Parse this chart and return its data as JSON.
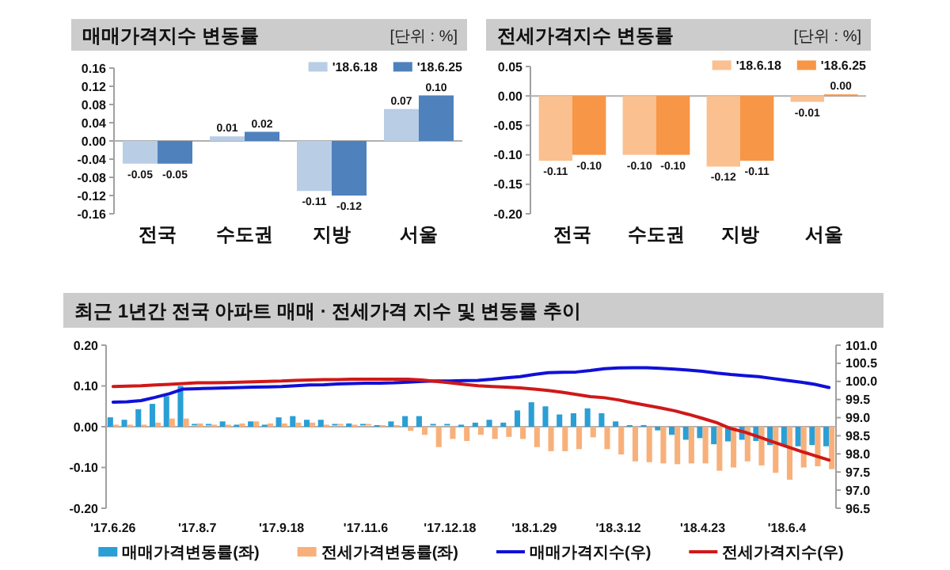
{
  "chart_data": [
    {
      "type": "bar",
      "title": "매매가격지수 변동률",
      "annotations": [
        "[단위 : %]"
      ],
      "categories": [
        "전국",
        "수도권",
        "지방",
        "서울"
      ],
      "series": [
        {
          "name": "'18.6.18",
          "color": "#b9cde5",
          "values": [
            -0.05,
            0.01,
            -0.11,
            0.07
          ],
          "value_labels": [
            "-0.05",
            "0.01",
            "-0.11",
            "0.07"
          ]
        },
        {
          "name": "'18.6.25",
          "color": "#4f81bd",
          "values": [
            -0.05,
            0.02,
            -0.12,
            0.1
          ],
          "value_labels": [
            "-0.05",
            "0.02",
            "-0.12",
            "0.10"
          ]
        }
      ],
      "ylim": [
        -0.16,
        0.16
      ],
      "yticks": [
        {
          "value": -0.16,
          "label": "-0.16"
        },
        {
          "value": -0.12,
          "label": "-0.12"
        },
        {
          "value": -0.08,
          "label": "-0.08"
        },
        {
          "value": -0.04,
          "label": "-0.04"
        },
        {
          "value": 0,
          "label": "0.00"
        },
        {
          "value": 0.04,
          "label": "0.04"
        },
        {
          "value": 0.08,
          "label": "0.08"
        },
        {
          "value": 0.12,
          "label": "0.12"
        },
        {
          "value": 0.16,
          "label": "0.16"
        }
      ],
      "legend": "top right"
    },
    {
      "type": "bar",
      "title": "전세가격지수 변동률",
      "annotations": [
        "[단위 : %]"
      ],
      "categories": [
        "전국",
        "수도권",
        "지방",
        "서울"
      ],
      "series": [
        {
          "name": "'18.6.18",
          "color": "#fac08f",
          "values": [
            -0.11,
            -0.1,
            -0.12,
            -0.01
          ],
          "value_labels": [
            "-0.11",
            "-0.10",
            "-0.12",
            "-0.01"
          ]
        },
        {
          "name": "'18.6.25",
          "color": "#f79646",
          "values": [
            -0.1,
            -0.1,
            -0.11,
            0.0
          ],
          "value_labels": [
            "-0.10",
            "-0.10",
            "-0.11",
            "0.00"
          ]
        }
      ],
      "ylim": [
        -0.2,
        0.05
      ],
      "yticks": [
        {
          "value": -0.2,
          "label": "-0.20"
        },
        {
          "value": -0.15,
          "label": "-0.15"
        },
        {
          "value": -0.1,
          "label": "-0.10"
        },
        {
          "value": -0.05,
          "label": "-0.05"
        },
        {
          "value": 0,
          "label": "0.00"
        },
        {
          "value": 0.05,
          "label": "0.05"
        }
      ],
      "legend": "top right"
    },
    {
      "type": "bar",
      "title": "최근 1년간 전국 아파트 매매 · 전세가격 지수 및 변동률 추이",
      "categories": [
        "'17.6.26",
        null,
        null,
        null,
        null,
        null,
        "'17.8.7",
        null,
        null,
        null,
        null,
        null,
        "'17.9.18",
        null,
        null,
        null,
        null,
        null,
        "'17.11.6",
        null,
        null,
        null,
        null,
        null,
        "'17.12.18",
        null,
        null,
        null,
        null,
        null,
        "'18.1.29",
        null,
        null,
        null,
        null,
        null,
        "'18.3.12",
        null,
        null,
        null,
        null,
        null,
        "'18.4.23",
        null,
        null,
        null,
        null,
        null,
        "'18.6.4",
        null,
        null,
        null
      ],
      "series": [
        {
          "name": "매매가격변동률(좌)",
          "color": "#2a9fd6",
          "values": [
            0.023,
            0.017,
            0.043,
            0.056,
            0.075,
            0.1,
            0.003,
            0.003,
            0.013,
            0.005,
            0.013,
            0.005,
            0.023,
            0.026,
            0.017,
            0.017,
            0.003,
            0.008,
            0.003,
            0,
            0.013,
            0.026,
            0.026,
            0.003,
            0.003,
            0.005,
            0.01,
            0.017,
            0.01,
            0.04,
            0.06,
            0.05,
            0.03,
            0.033,
            0.045,
            0.033,
            0.013,
            0,
            0.004,
            -0.009,
            -0.02,
            -0.032,
            -0.028,
            -0.043,
            -0.036,
            -0.032,
            -0.035,
            -0.045,
            -0.048,
            -0.048,
            -0.045,
            -0.048
          ]
        },
        {
          "name": "전세가격변동률(좌)",
          "color": "#f8b07a",
          "values": [
            0.005,
            0.005,
            0.005,
            0.01,
            0.02,
            0.02,
            0.008,
            0.005,
            0.005,
            0.008,
            0.013,
            0.008,
            0.008,
            0.01,
            0.01,
            0.005,
            0.003,
            0.005,
            0.003,
            0,
            0,
            -0.01,
            -0.02,
            -0.05,
            -0.03,
            -0.035,
            -0.02,
            -0.03,
            -0.025,
            -0.03,
            -0.05,
            -0.06,
            -0.06,
            -0.055,
            -0.026,
            -0.055,
            -0.068,
            -0.085,
            -0.087,
            -0.09,
            -0.092,
            -0.09,
            -0.09,
            -0.108,
            -0.1,
            -0.085,
            -0.095,
            -0.113,
            -0.13,
            -0.1,
            -0.097,
            -0.104
          ]
        },
        {
          "name": "매매가격지수(우)",
          "type": "line",
          "axis": "y2",
          "color": "#1010d8",
          "values": [
            99.43,
            99.44,
            99.47,
            99.56,
            99.66,
            99.79,
            99.8,
            99.81,
            99.82,
            99.83,
            99.84,
            99.85,
            99.86,
            99.88,
            99.9,
            99.91,
            99.93,
            99.94,
            99.95,
            99.95,
            99.96,
            99.98,
            100.0,
            100.01,
            100.01,
            100.02,
            100.03,
            100.06,
            100.1,
            100.13,
            100.19,
            100.24,
            100.25,
            100.26,
            100.3,
            100.35,
            100.37,
            100.38,
            100.38,
            100.36,
            100.34,
            100.31,
            100.28,
            100.23,
            100.19,
            100.16,
            100.13,
            100.08,
            100.03,
            99.98,
            99.92,
            99.83
          ]
        },
        {
          "name": "전세가격지수(우)",
          "type": "line",
          "axis": "y2",
          "color": "#d01818",
          "values": [
            99.86,
            99.87,
            99.88,
            99.9,
            99.92,
            99.94,
            99.96,
            99.96,
            99.97,
            99.98,
            99.99,
            100.0,
            100.01,
            100.03,
            100.04,
            100.05,
            100.05,
            100.06,
            100.06,
            100.06,
            100.06,
            100.06,
            100.04,
            100.0,
            99.96,
            99.92,
            99.88,
            99.86,
            99.84,
            99.82,
            99.79,
            99.75,
            99.7,
            99.64,
            99.58,
            99.55,
            99.49,
            99.41,
            99.34,
            99.27,
            99.19,
            99.09,
            98.98,
            98.86,
            98.7,
            98.6,
            98.47,
            98.33,
            98.2,
            98.07,
            97.95,
            97.83
          ]
        }
      ],
      "ylim": [
        -0.2,
        0.2
      ],
      "yticks": [
        {
          "value": -0.2,
          "label": "-0.20"
        },
        {
          "value": -0.1,
          "label": "-0.10"
        },
        {
          "value": 0,
          "label": "0.00"
        },
        {
          "value": 0.1,
          "label": "0.10"
        },
        {
          "value": 0.2,
          "label": "0.20"
        }
      ],
      "y2lim": [
        96.5,
        101.0
      ],
      "y2ticks": [
        {
          "value": 96.5,
          "label": "96.5"
        },
        {
          "value": 97,
          "label": "97.0"
        },
        {
          "value": 97.5,
          "label": "97.5"
        },
        {
          "value": 98,
          "label": "98.0"
        },
        {
          "value": 98.5,
          "label": "98.5"
        },
        {
          "value": 99,
          "label": "99.0"
        },
        {
          "value": 99.5,
          "label": "99.5"
        },
        {
          "value": 100,
          "label": "100.0"
        },
        {
          "value": 100.5,
          "label": "100.5"
        },
        {
          "value": 101,
          "label": "101.0"
        }
      ],
      "legend": "bottom"
    }
  ]
}
